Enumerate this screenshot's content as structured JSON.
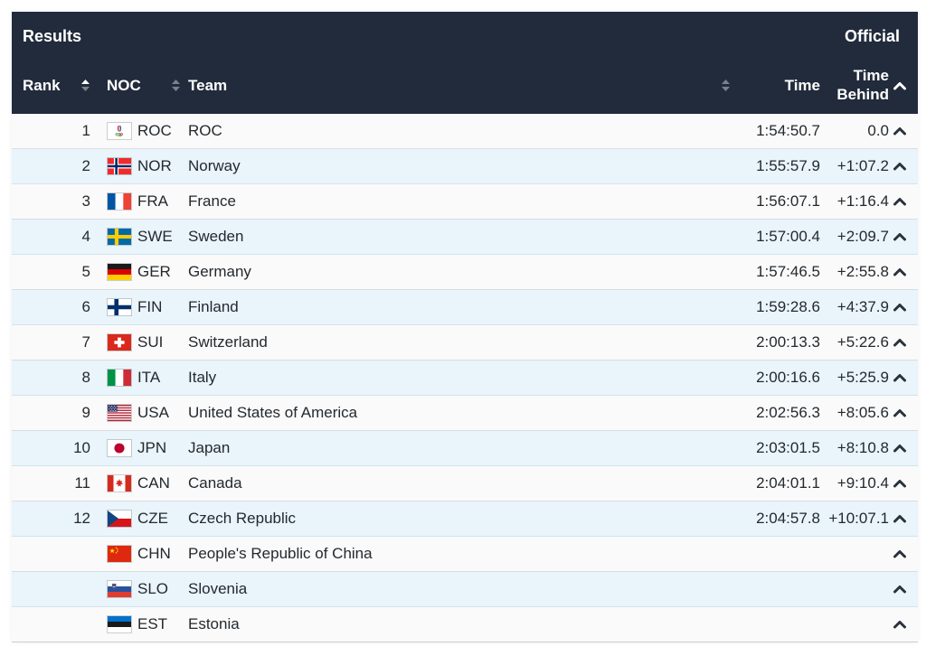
{
  "panel": {
    "title": "Results",
    "status": "Official"
  },
  "columns": {
    "rank": "Rank",
    "noc": "NOC",
    "team": "Team",
    "time": "Time",
    "time_behind": "Time Behind"
  },
  "icons": {
    "sort_rank": "sort-diamond-icon (ascending active)",
    "sort_noc": "sort-diamond-icon",
    "sort_time": "sort-diamond-icon",
    "expand": "chevron-up-icon"
  },
  "colors": {
    "header_bg": "#222B3C",
    "header_text": "#FFFFFF",
    "row_bg": "#FAFAFA",
    "row_alt": "#E9F4FB",
    "text": "#24292E",
    "border": "#DADDE0",
    "border_alt": "#D3E4EF",
    "bottom_border": "#C9CED3",
    "sort_active": "#FFFFFF",
    "sort_inactive": "#79818D",
    "caret": "#2A313C"
  },
  "rows": [
    {
      "rank": "1",
      "noc": "ROC",
      "team": "ROC",
      "time": "1:54:50.7",
      "behind": "0.0"
    },
    {
      "rank": "2",
      "noc": "NOR",
      "team": "Norway",
      "time": "1:55:57.9",
      "behind": "+1:07.2"
    },
    {
      "rank": "3",
      "noc": "FRA",
      "team": "France",
      "time": "1:56:07.1",
      "behind": "+1:16.4"
    },
    {
      "rank": "4",
      "noc": "SWE",
      "team": "Sweden",
      "time": "1:57:00.4",
      "behind": "+2:09.7"
    },
    {
      "rank": "5",
      "noc": "GER",
      "team": "Germany",
      "time": "1:57:46.5",
      "behind": "+2:55.8"
    },
    {
      "rank": "6",
      "noc": "FIN",
      "team": "Finland",
      "time": "1:59:28.6",
      "behind": "+4:37.9"
    },
    {
      "rank": "7",
      "noc": "SUI",
      "team": "Switzerland",
      "time": "2:00:13.3",
      "behind": "+5:22.6"
    },
    {
      "rank": "8",
      "noc": "ITA",
      "team": "Italy",
      "time": "2:00:16.6",
      "behind": "+5:25.9"
    },
    {
      "rank": "9",
      "noc": "USA",
      "team": "United States of America",
      "time": "2:02:56.3",
      "behind": "+8:05.6"
    },
    {
      "rank": "10",
      "noc": "JPN",
      "team": "Japan",
      "time": "2:03:01.5",
      "behind": "+8:10.8"
    },
    {
      "rank": "11",
      "noc": "CAN",
      "team": "Canada",
      "time": "2:04:01.1",
      "behind": "+9:10.4"
    },
    {
      "rank": "12",
      "noc": "CZE",
      "team": "Czech Republic",
      "time": "2:04:57.8",
      "behind": "+10:07.1"
    },
    {
      "rank": "",
      "noc": "CHN",
      "team": "People's Republic of China",
      "time": "",
      "behind": ""
    },
    {
      "rank": "",
      "noc": "SLO",
      "team": "Slovenia",
      "time": "",
      "behind": ""
    },
    {
      "rank": "",
      "noc": "EST",
      "team": "Estonia",
      "time": "",
      "behind": ""
    }
  ]
}
